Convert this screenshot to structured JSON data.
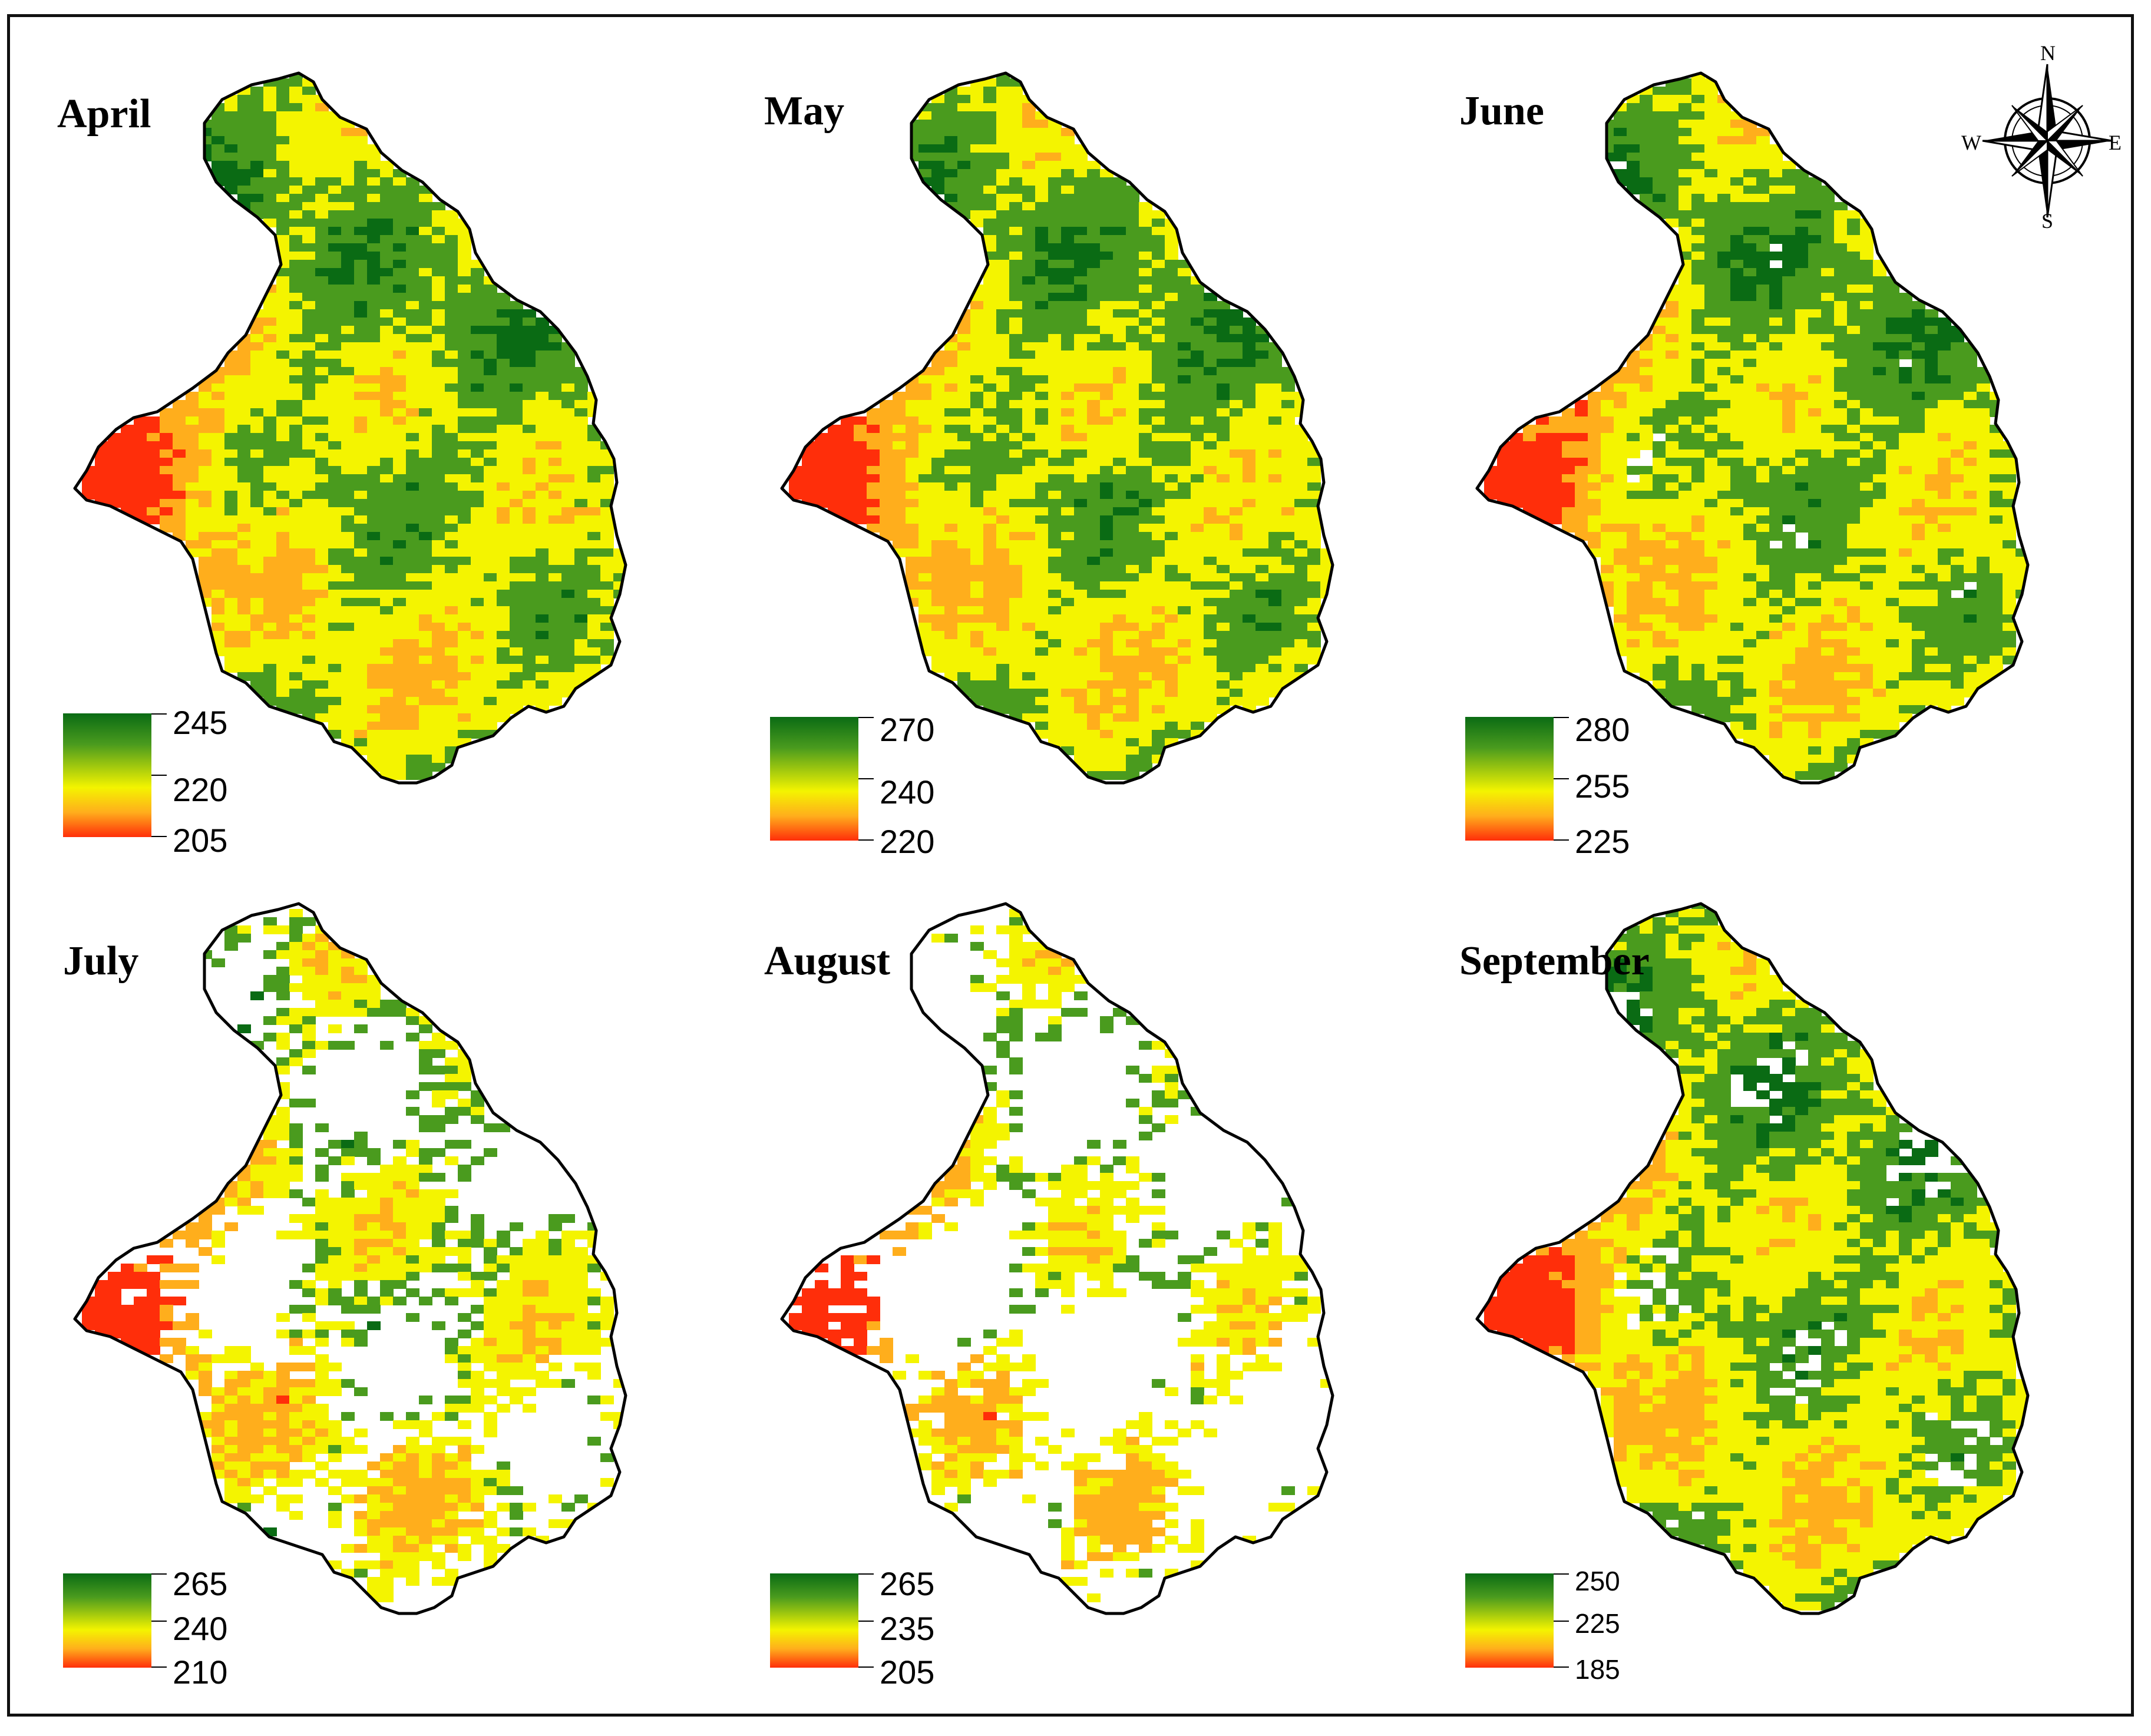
{
  "compass": {
    "icon": "north-arrow-compass-rose-icon",
    "north": "N",
    "south": "S",
    "east": "E",
    "west": "W"
  },
  "legend_colors": {
    "high": "#0a6b14",
    "mid_high": "#4a9b1e",
    "mid": "#f4f400",
    "mid_low": "#ffae1c",
    "low": "#ff2e0a",
    "no_data": "#ffffff",
    "boundary": "#000000"
  },
  "panels": [
    {
      "month": "April",
      "legend": {
        "top": "245",
        "mid": "220",
        "bottom": "205"
      },
      "coverage": 1.0
    },
    {
      "month": "May",
      "legend": {
        "top": "270",
        "mid": "240",
        "bottom": "220"
      },
      "coverage": 0.8
    },
    {
      "month": "June",
      "legend": {
        "top": "280",
        "mid": "255",
        "bottom": "225"
      },
      "coverage": 0.72
    },
    {
      "month": "July",
      "legend": {
        "top": "265",
        "mid": "240",
        "bottom": "210"
      },
      "coverage": 0.25
    },
    {
      "month": "August",
      "legend": {
        "top": "265",
        "mid": "235",
        "bottom": "205"
      },
      "coverage": 0.14
    },
    {
      "month": "September",
      "legend": {
        "top": "250",
        "mid": "225",
        "bottom": "185"
      },
      "coverage": 0.6
    }
  ]
}
